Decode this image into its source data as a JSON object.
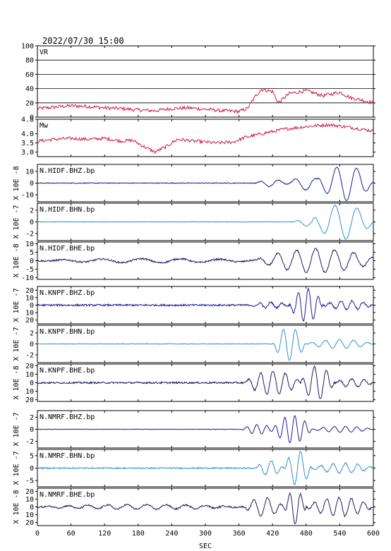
{
  "page": {
    "timestamp": "2022/07/30 15:00"
  },
  "chart_data": {
    "type": "line",
    "xlabel": "SEC",
    "xlim": [
      0,
      600
    ],
    "xticks": [
      0,
      60,
      120,
      180,
      240,
      300,
      360,
      420,
      480,
      540,
      600
    ],
    "panels": [
      {
        "id": "vr",
        "label": "VR",
        "kind": "vr",
        "ylim": [
          0,
          100
        ],
        "yticks": [
          "100",
          "80",
          "60",
          "40",
          "20",
          "0"
        ],
        "grid": true,
        "color": "#cc1a44",
        "points": [
          [
            0,
            12
          ],
          [
            30,
            14
          ],
          [
            60,
            16
          ],
          [
            90,
            15
          ],
          [
            120,
            13
          ],
          [
            150,
            12
          ],
          [
            180,
            10
          ],
          [
            210,
            9
          ],
          [
            240,
            12
          ],
          [
            270,
            13
          ],
          [
            300,
            11
          ],
          [
            330,
            9
          ],
          [
            360,
            8
          ],
          [
            375,
            12
          ],
          [
            390,
            30
          ],
          [
            400,
            39
          ],
          [
            420,
            36
          ],
          [
            430,
            20
          ],
          [
            450,
            33
          ],
          [
            480,
            37
          ],
          [
            510,
            30
          ],
          [
            540,
            35
          ],
          [
            560,
            27
          ],
          [
            580,
            24
          ],
          [
            600,
            20
          ]
        ]
      },
      {
        "id": "mw",
        "label": "Mw",
        "kind": "mw",
        "ylim": [
          2.75,
          4.8
        ],
        "yticks": [
          "4.8",
          "4.0",
          "3.5",
          "3.0"
        ],
        "tickvals": [
          4.8,
          4.0,
          3.5,
          3.0
        ],
        "grid": false,
        "color": "#cc1a44",
        "points": [
          [
            0,
            3.6
          ],
          [
            30,
            3.7
          ],
          [
            60,
            3.75
          ],
          [
            90,
            3.7
          ],
          [
            120,
            3.75
          ],
          [
            150,
            3.6
          ],
          [
            170,
            3.65
          ],
          [
            190,
            3.3
          ],
          [
            210,
            3.0
          ],
          [
            230,
            3.3
          ],
          [
            250,
            3.7
          ],
          [
            280,
            3.6
          ],
          [
            320,
            3.5
          ],
          [
            350,
            3.55
          ],
          [
            370,
            3.8
          ],
          [
            400,
            4.0
          ],
          [
            440,
            4.25
          ],
          [
            480,
            4.4
          ],
          [
            520,
            4.5
          ],
          [
            560,
            4.35
          ],
          [
            600,
            4.15
          ]
        ]
      },
      {
        "id": "p3",
        "label": "N.HIDF.BHZ.bp",
        "kind": "wave",
        "unit": "X 10E -8",
        "ylim": [
          -16,
          16
        ],
        "yticks": [
          "10",
          "0",
          "-10"
        ],
        "tickvals": [
          10,
          0,
          -10
        ],
        "color": "#1a1a99",
        "noise": 0.35,
        "packets": [
          {
            "t0": 390,
            "amp": 3,
            "period": 35,
            "dur": 60
          },
          {
            "t0": 450,
            "amp": 6,
            "period": 40,
            "dur": 60
          },
          {
            "t0": 500,
            "amp": 15,
            "period": 36,
            "dur": 100
          }
        ]
      },
      {
        "id": "p4",
        "label": "N.HIDF.BHN.bp",
        "kind": "wave",
        "unit": "X 10E -7",
        "ylim": [
          -3.2,
          3.2
        ],
        "yticks": [
          "2",
          "0",
          "-2"
        ],
        "tickvals": [
          2,
          0,
          -2
        ],
        "color": "#2f8fd0",
        "noise": 0.05,
        "packets": [
          {
            "t0": 460,
            "amp": 0.7,
            "period": 40,
            "dur": 40
          },
          {
            "t0": 490,
            "amp": 3,
            "period": 40,
            "dur": 110
          }
        ]
      },
      {
        "id": "p5",
        "label": "N.HIDF.BHE.bp",
        "kind": "wave",
        "unit": "X 10E -8",
        "ylim": [
          -11,
          11
        ],
        "yticks": [
          "10",
          "5",
          "0",
          "-5",
          "-10"
        ],
        "tickvals": [
          10,
          5,
          0,
          -5,
          -10
        ],
        "color": "#1a1a66",
        "noise": 0.5,
        "packets": [
          {
            "t0": 0,
            "amp": 1.2,
            "period": 70,
            "dur": 420
          },
          {
            "t0": 390,
            "amp": 7,
            "period": 34,
            "dur": 220
          }
        ]
      },
      {
        "id": "p6",
        "label": "N.KNPF.BHZ.bp",
        "kind": "wave",
        "unit": "X 10E -7",
        "ylim": [
          -25,
          25
        ],
        "yticks": [
          "20",
          "10",
          "0",
          "10",
          "20"
        ],
        "tickvals": [
          20,
          10,
          0,
          -10,
          -20
        ],
        "color": "#1a1a99",
        "noise": 1.2,
        "packets": [
          {
            "t0": 380,
            "amp": 4,
            "period": 20,
            "dur": 70
          },
          {
            "t0": 450,
            "amp": 22,
            "period": 18,
            "dur": 60
          },
          {
            "t0": 510,
            "amp": 6,
            "period": 20,
            "dur": 90
          }
        ]
      },
      {
        "id": "p7",
        "label": "N.KNPF.BHN.bp",
        "kind": "wave",
        "unit": "X 10E -7",
        "ylim": [
          -3.4,
          3.4
        ],
        "yticks": [
          "2",
          "0",
          "-2"
        ],
        "tickvals": [
          2,
          0,
          -2
        ],
        "color": "#2f8fd0",
        "noise": 0.05,
        "packets": [
          {
            "t0": 420,
            "amp": 3,
            "period": 22,
            "dur": 60
          },
          {
            "t0": 480,
            "amp": 0.8,
            "period": 25,
            "dur": 120
          }
        ]
      },
      {
        "id": "p8",
        "label": "N.KNPF.BHE.bp",
        "kind": "wave",
        "unit": "X 10E -8",
        "ylim": [
          -22,
          22
        ],
        "yticks": [
          "20",
          "10",
          "0",
          "10",
          "20"
        ],
        "tickvals": [
          20,
          10,
          0,
          -10,
          -20
        ],
        "color": "#1a1a66",
        "noise": 1.0,
        "packets": [
          {
            "t0": 370,
            "amp": 14,
            "period": 22,
            "dur": 100
          },
          {
            "t0": 470,
            "amp": 20,
            "period": 22,
            "dur": 60
          },
          {
            "t0": 530,
            "amp": 5,
            "period": 22,
            "dur": 70
          }
        ]
      },
      {
        "id": "p9",
        "label": "N.NMRF.BHZ.bp",
        "kind": "wave",
        "unit": "X 10E -7",
        "ylim": [
          -3.1,
          3.1
        ],
        "yticks": [
          "2",
          "0",
          "-2"
        ],
        "tickvals": [
          2,
          0,
          -2
        ],
        "color": "#1a1a99",
        "noise": 0.04,
        "packets": [
          {
            "t0": 365,
            "amp": 0.8,
            "period": 18,
            "dur": 60
          },
          {
            "t0": 420,
            "amp": 2.3,
            "period": 18,
            "dur": 70
          },
          {
            "t0": 490,
            "amp": 0.5,
            "period": 20,
            "dur": 110
          }
        ]
      },
      {
        "id": "p10",
        "label": "N.NMRF.BHN.bp",
        "kind": "wave",
        "unit": "X 10E -7",
        "ylim": [
          -7.5,
          7.5
        ],
        "yticks": [
          "5",
          "0",
          "-5"
        ],
        "tickvals": [
          5,
          0,
          -5
        ],
        "color": "#2f8fd0",
        "noise": 0.25,
        "packets": [
          {
            "t0": 390,
            "amp": 3,
            "period": 22,
            "dur": 50
          },
          {
            "t0": 440,
            "amp": 7,
            "period": 22,
            "dur": 50
          },
          {
            "t0": 490,
            "amp": 2,
            "period": 22,
            "dur": 110
          }
        ]
      },
      {
        "id": "p11",
        "label": "N.NMRF.BHE.bp",
        "kind": "wave",
        "unit": "X 10E -8",
        "ylim": [
          -24,
          24
        ],
        "yticks": [
          "20",
          "10",
          "0",
          "10",
          "20"
        ],
        "tickvals": [
          20,
          10,
          0,
          -10,
          -20
        ],
        "color": "#1a1a66",
        "noise": 1.0,
        "packets": [
          {
            "t0": 0,
            "amp": 3,
            "period": 35,
            "dur": 370
          },
          {
            "t0": 370,
            "amp": 12,
            "period": 25,
            "dur": 70
          },
          {
            "t0": 440,
            "amp": 22,
            "period": 20,
            "dur": 40
          },
          {
            "t0": 480,
            "amp": 12,
            "period": 22,
            "dur": 120
          }
        ]
      }
    ]
  }
}
